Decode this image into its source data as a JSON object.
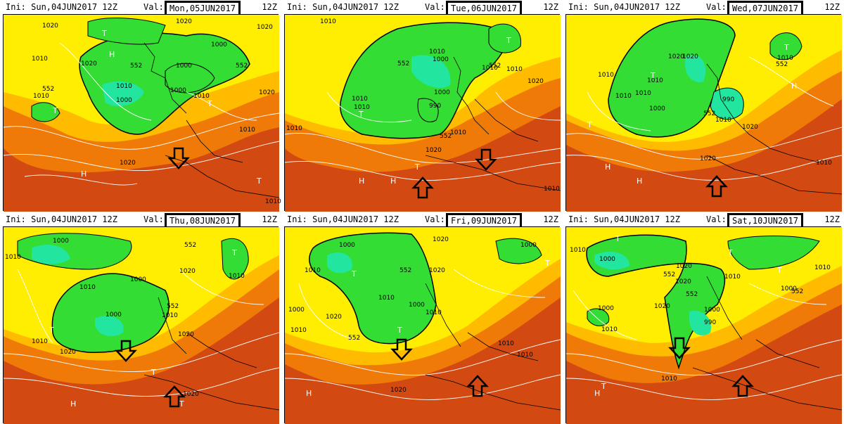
{
  "panels": [
    {
      "ini": "Ini:  Sun,04JUN2017  12Z",
      "val_label": "Val:",
      "valid": "Mon,05JUN2017",
      "cycle": "12Z",
      "labels": [
        "1020",
        "1020",
        "1000",
        "1020",
        "552",
        "1000",
        "1010",
        "1000",
        "1000",
        "1010",
        "552",
        "1010",
        "1020",
        "1010",
        "1020",
        "1010",
        "552",
        "1020",
        "1010"
      ],
      "arrow": "down"
    },
    {
      "ini": "Ini:  Sun,04JUN2017  12Z",
      "val_label": "Val:",
      "valid": "Tue,06JUN2017",
      "cycle": "12Z",
      "labels": [
        "1010",
        "1010",
        "1000",
        "552",
        "1010",
        "552",
        "1010",
        "1010",
        "990",
        "1000",
        "1020",
        "1010",
        "552",
        "1020",
        "1010",
        "1010",
        "1010"
      ],
      "arrow": "both"
    },
    {
      "ini": "Ini:  Sun,04JUN2017  12Z",
      "val_label": "Val:",
      "valid": "Wed,07JUN2017",
      "cycle": "12Z",
      "labels": [
        "1020",
        "1010",
        "1020",
        "1010",
        "552",
        "1010",
        "1010",
        "1000",
        "990",
        "552",
        "1010",
        "1020",
        "1020",
        "1010",
        "1010"
      ],
      "arrow": "up"
    },
    {
      "ini": "Ini:  Sun,04JUN2017  12Z",
      "val_label": "Val:",
      "valid": "Thu,08JUN2017",
      "cycle": "12Z",
      "labels": [
        "1000",
        "1010",
        "552",
        "1020",
        "1010",
        "1000",
        "1000",
        "552",
        "1010",
        "1010",
        "1020",
        "1020",
        "1010",
        "1020"
      ],
      "arrow": "both"
    },
    {
      "ini": "Ini:  Sun,04JUN2017  12Z",
      "val_label": "Val:",
      "valid": "Fri,09JUN2017",
      "cycle": "12Z",
      "labels": [
        "1000",
        "1000",
        "1010",
        "552",
        "1020",
        "1010",
        "1000",
        "1010",
        "1000",
        "1010",
        "552",
        "1020",
        "1010",
        "1020",
        "1010",
        "1020"
      ],
      "arrow": "both"
    },
    {
      "ini": "Ini:  Sun,04JUN2017  12Z",
      "val_label": "Val:",
      "valid": "Sat,10JUN2017",
      "cycle": "12Z",
      "labels": [
        "1010",
        "1000",
        "1020",
        "552",
        "1020",
        "552",
        "1010",
        "1010",
        "1000",
        "552",
        "1000",
        "1020",
        "990",
        "1000",
        "1010",
        "1010"
      ],
      "arrow": "both"
    }
  ],
  "pressure_symbols": {
    "high": "H",
    "low": "T"
  },
  "colors": {
    "deep_trough": "#22e6a0",
    "trough": "#33dd33",
    "ridge_edge": "#ffee00",
    "ridge": "#ff9a00",
    "warm": "#d23a10",
    "hot": "#b81818"
  }
}
